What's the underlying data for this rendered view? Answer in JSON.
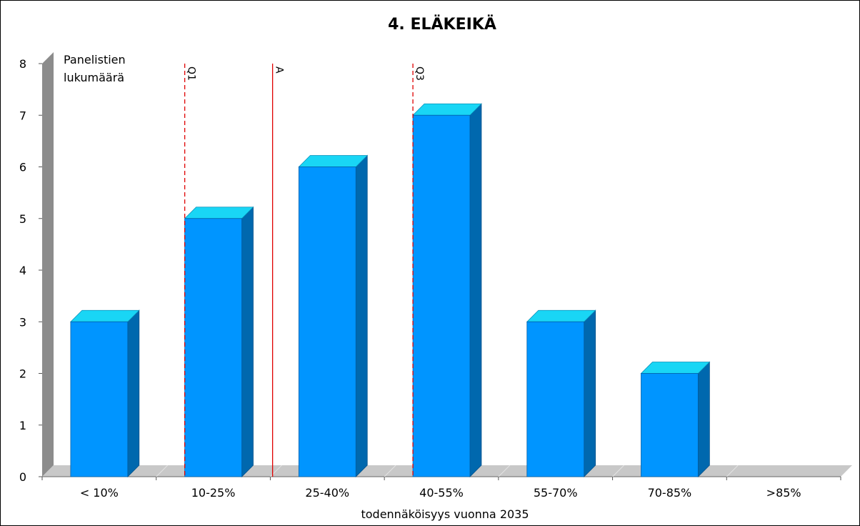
{
  "chart_data": {
    "type": "bar",
    "title": "4. ELÄKEIKÄ",
    "ylabel_line1": "Panelistien",
    "ylabel_line2": "lukumäärä",
    "xlabel": "todennäköisyys vuonna 2035",
    "categories": [
      "< 10%",
      "10-25%",
      "25-40%",
      "40-55%",
      "55-70%",
      "70-85%",
      ">85%"
    ],
    "values": [
      3,
      5,
      6,
      7,
      3,
      2,
      0
    ],
    "ylim": [
      0,
      8
    ],
    "yticks": [
      0,
      1,
      2,
      3,
      4,
      5,
      6,
      7,
      8
    ],
    "grid": false,
    "bar_style": "3d",
    "colors": {
      "bar_front": "#0095ff",
      "bar_top": "#19d6f5",
      "bar_side": "#0068ae",
      "wall": "#8c8c8c",
      "floor": "#c8c8c8",
      "ref_line": "#e00000"
    },
    "reference_lines": [
      {
        "label": "Q1",
        "category_position": 1.25,
        "style": "dashed"
      },
      {
        "label": "A",
        "category_position": 2.02,
        "style": "solid"
      },
      {
        "label": "Q3",
        "category_position": 3.25,
        "style": "dashed"
      }
    ]
  }
}
